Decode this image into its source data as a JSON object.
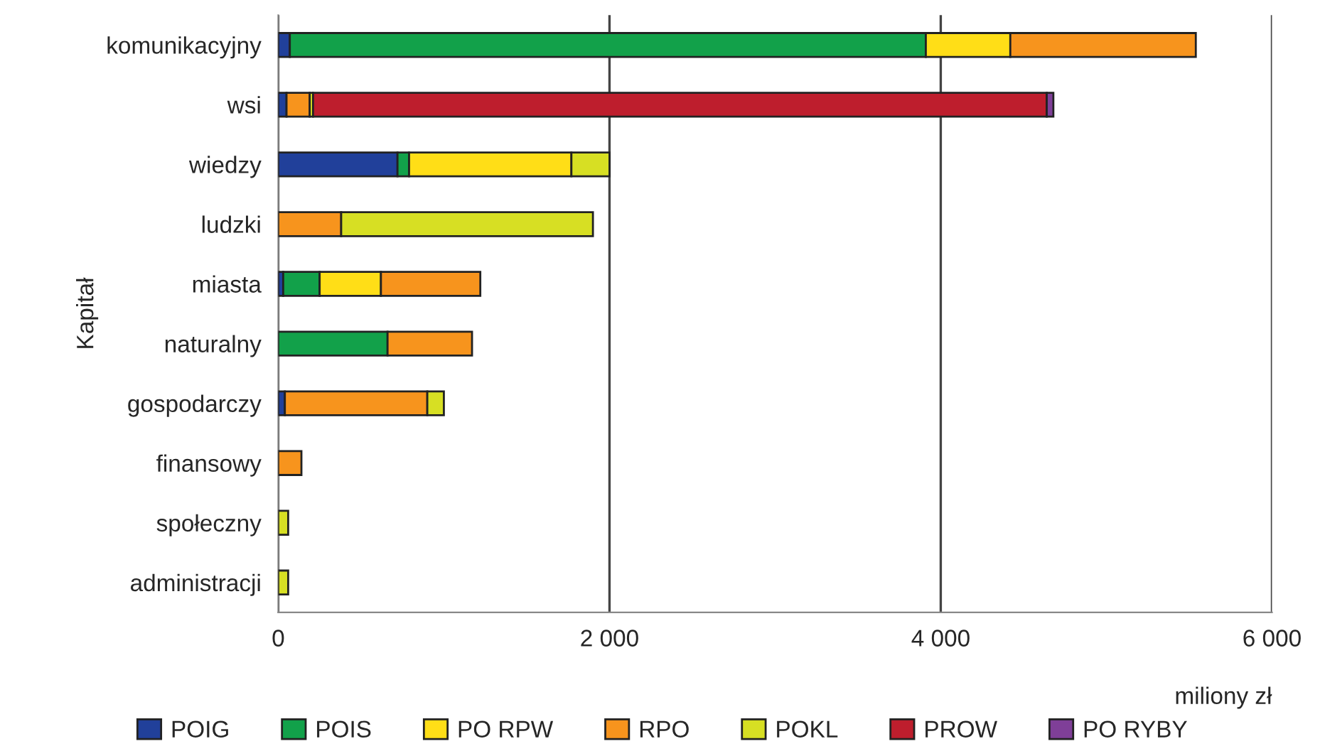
{
  "chart_data": {
    "type": "bar",
    "orientation": "horizontal",
    "stacked": true,
    "xlabel": "miliony zł",
    "ylabel": "Kapitał",
    "categories": [
      "komunikacyjny",
      "wsi",
      "wiedzy",
      "ludzki",
      "miasta",
      "naturalny",
      "gospodarczy",
      "finansowy",
      "społeczny",
      "administracji"
    ],
    "series": [
      {
        "name": "POIG",
        "color": "#21409a",
        "values": [
          70,
          50,
          720,
          null,
          30,
          null,
          40,
          null,
          null,
          null
        ]
      },
      {
        "name": "POIS",
        "color": "#12a14a",
        "values": [
          3840,
          null,
          70,
          null,
          220,
          660,
          null,
          null,
          null,
          null
        ]
      },
      {
        "name": "PO RPW",
        "color": "#ffde17",
        "values": [
          510,
          null,
          980,
          null,
          370,
          null,
          null,
          null,
          null,
          null
        ]
      },
      {
        "name": "RPO",
        "color": "#f7941d",
        "values": [
          1120,
          140,
          null,
          380,
          600,
          510,
          860,
          140,
          null,
          null
        ]
      },
      {
        "name": "POKL",
        "color": "#d7df23",
        "values": [
          null,
          20,
          230,
          1520,
          null,
          null,
          100,
          null,
          60,
          60
        ]
      },
      {
        "name": "PROW",
        "color": "#be1e2d",
        "values": [
          null,
          4430,
          null,
          null,
          null,
          null,
          null,
          null,
          null,
          null
        ]
      },
      {
        "name": "PO RYBY",
        "color": "#7f3f98",
        "values": [
          null,
          40,
          null,
          null,
          null,
          null,
          null,
          null,
          null,
          null
        ]
      }
    ],
    "xlim": [
      0,
      6000
    ],
    "xticks": [
      0,
      {
        "value": 2000,
        "label": "2 000"
      },
      {
        "value": 4000,
        "label": "4 000"
      },
      {
        "value": 6000,
        "label": "6 000"
      }
    ],
    "grid": "x",
    "legend": "bottom"
  }
}
